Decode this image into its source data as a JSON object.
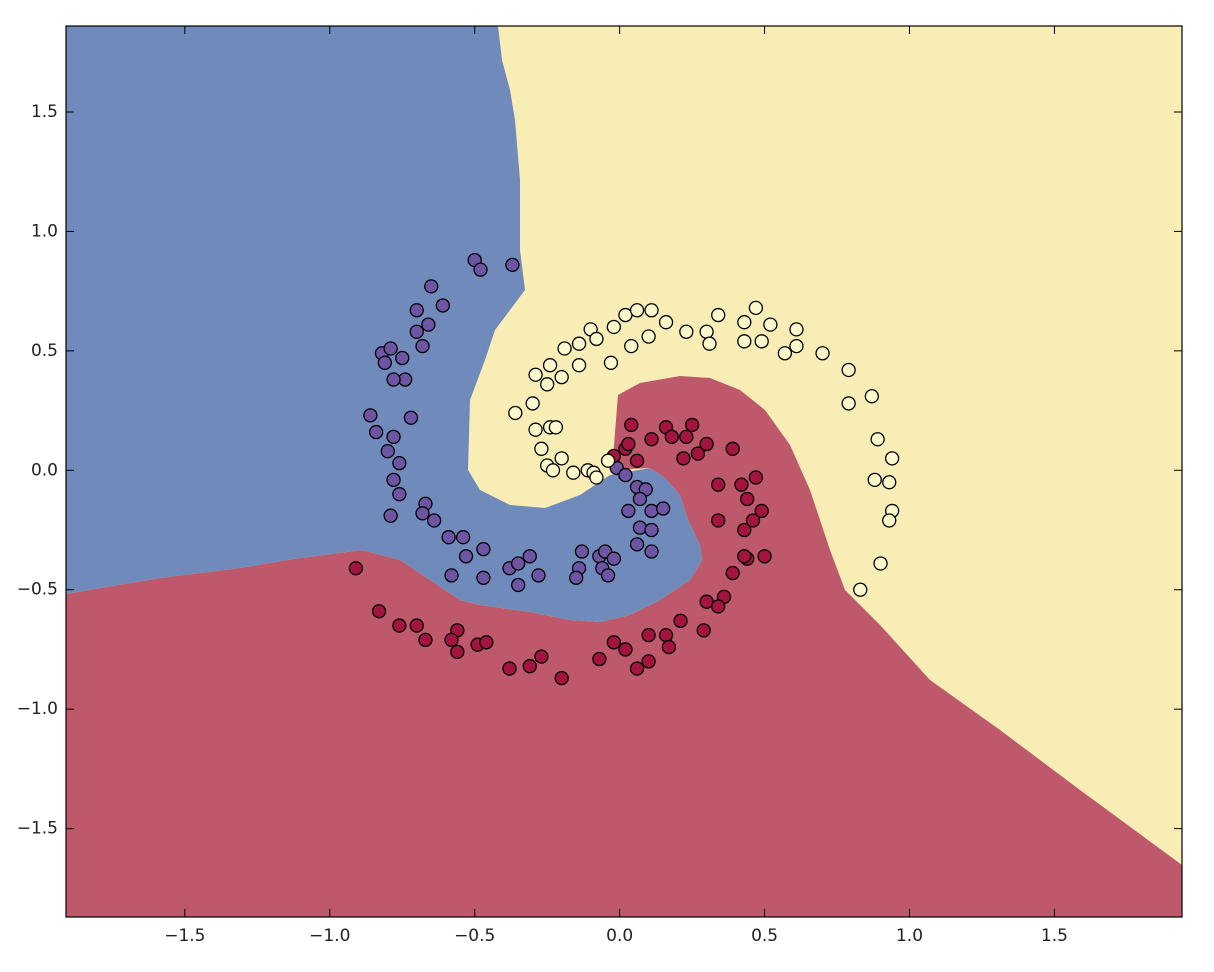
{
  "chart_data": {
    "type": "scatter",
    "xlim": [
      -1.91,
      1.94
    ],
    "ylim": [
      -1.87,
      1.86
    ],
    "xticks": [
      {
        "value": -1.5,
        "label": "−1.5"
      },
      {
        "value": -1.0,
        "label": "−1.0"
      },
      {
        "value": -0.5,
        "label": "−0.5"
      },
      {
        "value": 0.0,
        "label": "0.0"
      },
      0.5,
      {
        "value": 1.0,
        "label": "1.0"
      },
      1.5
    ],
    "yticks": [
      {
        "value": -1.5,
        "label": "−1.5"
      },
      {
        "value": -1.0,
        "label": "−1.0"
      },
      {
        "value": -0.5,
        "label": "−0.5"
      },
      {
        "value": 0.0,
        "label": "0.0"
      },
      0.5,
      {
        "value": 1.0,
        "label": "1.0"
      },
      1.5
    ],
    "grid": false,
    "series": [
      {
        "color": "#6e55a3",
        "x": [
          -0.5,
          -0.48,
          -0.37,
          -0.65,
          -0.61,
          -0.7,
          -0.66,
          -0.7,
          -0.68,
          -0.82,
          -0.79,
          -0.81,
          -0.75,
          -0.74,
          -0.78,
          -0.86,
          -0.72,
          -0.84,
          -0.78,
          -0.8,
          -0.76,
          -0.78,
          -0.76,
          -0.67,
          -0.68,
          -0.64,
          -0.79,
          -0.59,
          -0.54,
          -0.53,
          -0.47,
          -0.58,
          -0.47,
          -0.38,
          -0.35,
          -0.31,
          -0.28,
          -0.35,
          -0.13,
          -0.14,
          -0.15,
          -0.07,
          -0.06,
          -0.05,
          -0.02,
          -0.04,
          -0.01,
          0.02,
          0.06,
          0.09,
          0.07,
          0.11,
          0.15,
          0.03,
          0.07,
          0.11,
          0.06,
          0.11
        ],
        "y": [
          0.88,
          0.84,
          0.86,
          0.77,
          0.69,
          0.67,
          0.61,
          0.58,
          0.52,
          0.49,
          0.51,
          0.45,
          0.47,
          0.38,
          0.38,
          0.23,
          0.22,
          0.16,
          0.14,
          0.08,
          0.03,
          -0.04,
          -0.1,
          -0.14,
          -0.18,
          -0.21,
          -0.19,
          -0.28,
          -0.28,
          -0.36,
          -0.33,
          -0.44,
          -0.45,
          -0.41,
          -0.39,
          -0.36,
          -0.44,
          -0.48,
          -0.34,
          -0.41,
          -0.45,
          -0.36,
          -0.41,
          -0.34,
          -0.37,
          -0.44,
          0.01,
          -0.02,
          -0.07,
          -0.08,
          -0.12,
          -0.17,
          -0.16,
          -0.17,
          -0.24,
          -0.25,
          -0.31,
          -0.34
        ]
      },
      {
        "color": "#a3153f",
        "x": [
          -0.91,
          -0.83,
          -0.76,
          -0.7,
          -0.67,
          -0.56,
          -0.58,
          -0.56,
          -0.49,
          -0.46,
          -0.38,
          -0.31,
          -0.27,
          -0.2,
          -0.07,
          -0.02,
          0.02,
          0.06,
          0.1,
          0.1,
          0.16,
          0.17,
          0.21,
          0.29,
          0.3,
          0.36,
          0.34,
          0.44,
          0.39,
          0.43,
          0.5,
          0.43,
          0.46,
          0.49,
          0.44,
          0.47,
          0.42,
          0.34,
          0.34,
          0.39,
          0.27,
          0.22,
          0.3,
          0.23,
          0.25,
          0.16,
          0.11,
          0.04,
          0.02,
          -0.02,
          0.03,
          0.18,
          0.06
        ],
        "y": [
          -0.41,
          -0.59,
          -0.65,
          -0.65,
          -0.71,
          -0.67,
          -0.71,
          -0.76,
          -0.73,
          -0.72,
          -0.83,
          -0.82,
          -0.78,
          -0.87,
          -0.79,
          -0.72,
          -0.75,
          -0.83,
          -0.69,
          -0.8,
          -0.69,
          -0.74,
          -0.63,
          -0.67,
          -0.55,
          -0.53,
          -0.57,
          -0.37,
          -0.43,
          -0.36,
          -0.36,
          -0.25,
          -0.21,
          -0.17,
          -0.12,
          -0.03,
          -0.06,
          -0.06,
          -0.21,
          0.09,
          0.07,
          0.05,
          0.11,
          0.14,
          0.19,
          0.18,
          0.13,
          0.19,
          0.09,
          0.06,
          0.11,
          0.14,
          0.04
        ]
      },
      {
        "color": "#fcf9cc",
        "x": [
          -0.36,
          -0.3,
          -0.29,
          -0.25,
          -0.24,
          -0.29,
          -0.27,
          -0.25,
          -0.23,
          -0.24,
          -0.22,
          -0.2,
          -0.16,
          -0.11,
          -0.09,
          -0.08,
          -0.04,
          -0.2,
          -0.19,
          -0.14,
          -0.14,
          -0.1,
          -0.08,
          -0.03,
          -0.02,
          0.02,
          0.04,
          0.06,
          0.1,
          0.11,
          0.16,
          0.23,
          0.3,
          0.31,
          0.34,
          0.43,
          0.43,
          0.47,
          0.49,
          0.52,
          0.57,
          0.61,
          0.61,
          0.7,
          0.79,
          0.79,
          0.87,
          0.89,
          0.94,
          0.88,
          0.93,
          0.94,
          0.93,
          0.9,
          0.83
        ],
        "y": [
          0.24,
          0.28,
          0.4,
          0.36,
          0.44,
          0.17,
          0.09,
          0.02,
          0.0,
          0.18,
          0.18,
          0.05,
          -0.01,
          0.0,
          -0.01,
          -0.03,
          0.04,
          0.39,
          0.51,
          0.44,
          0.53,
          0.59,
          0.55,
          0.45,
          0.6,
          0.65,
          0.52,
          0.67,
          0.56,
          0.67,
          0.62,
          0.58,
          0.58,
          0.53,
          0.65,
          0.62,
          0.54,
          0.68,
          0.54,
          0.61,
          0.49,
          0.59,
          0.52,
          0.49,
          0.42,
          0.28,
          0.31,
          0.13,
          0.05,
          -0.04,
          -0.05,
          -0.17,
          -0.21,
          -0.39,
          -0.5
        ]
      }
    ]
  }
}
